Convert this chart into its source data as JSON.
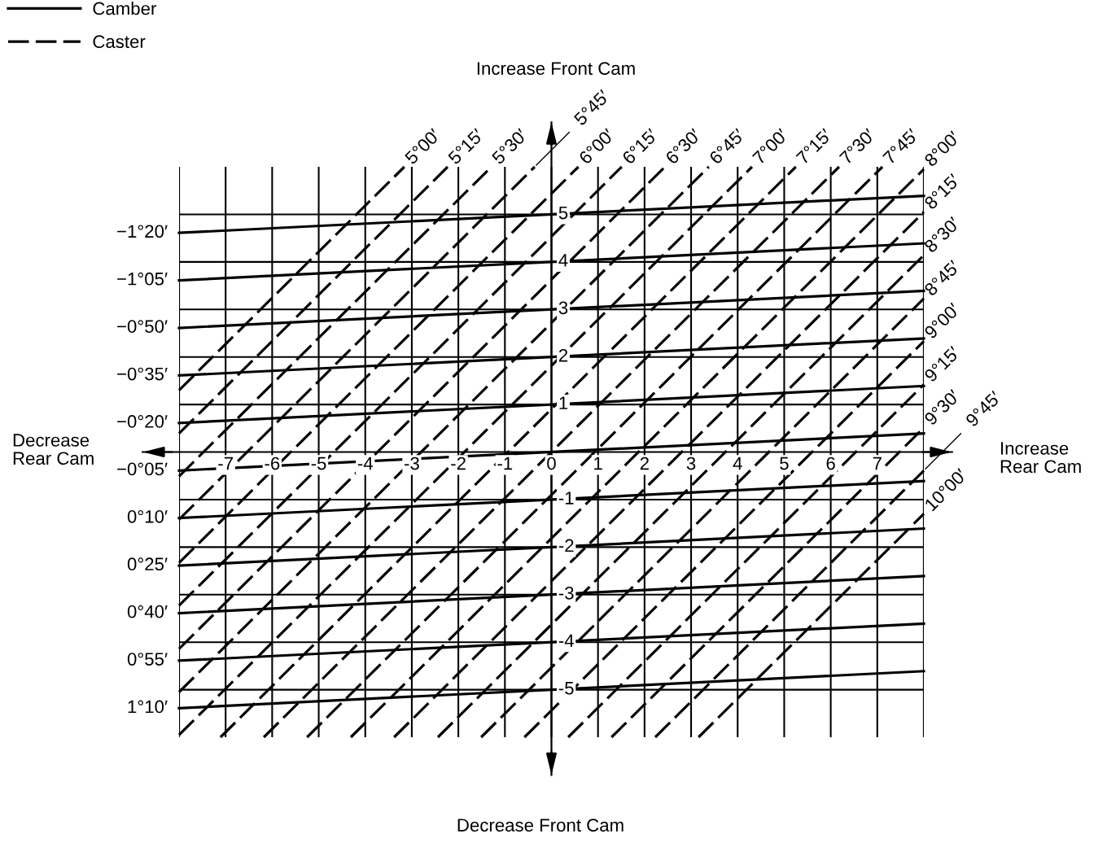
{
  "chart_data": {
    "type": "line",
    "xlim": [
      -8,
      8
    ],
    "ylim": [
      -6,
      6
    ],
    "xticks": [
      -7,
      -6,
      -5,
      -4,
      -3,
      -2,
      -1,
      0,
      1,
      2,
      3,
      4,
      5,
      6,
      7
    ],
    "yticks": [
      -5,
      -4,
      -3,
      -2,
      -1,
      1,
      2,
      3,
      4,
      5
    ],
    "grid": true,
    "legend": "top left",
    "series": [
      {
        "name": "Camber",
        "color": "#000000",
        "line_style": "solid",
        "x": [
          -8,
          8
        ],
        "values": [
          4.61,
          5.39
        ]
      },
      {
        "color": "#000000",
        "line_style": "solid",
        "x": [
          -8,
          8
        ],
        "values": [
          3.61,
          4.39
        ]
      },
      {
        "color": "#000000",
        "line_style": "solid",
        "x": [
          -8,
          8
        ],
        "values": [
          2.61,
          3.39
        ]
      },
      {
        "color": "#000000",
        "line_style": "solid",
        "x": [
          -8,
          8
        ],
        "values": [
          1.61,
          2.39
        ]
      },
      {
        "color": "#000000",
        "line_style": "solid",
        "x": [
          -8,
          8
        ],
        "values": [
          0.61,
          1.39
        ]
      },
      {
        "color": "#000000",
        "line_style": "solid",
        "x": [
          -8,
          8
        ],
        "values": [
          -0.39,
          0.39
        ]
      },
      {
        "color": "#000000",
        "line_style": "solid",
        "x": [
          -8,
          8
        ],
        "values": [
          -1.39,
          -0.61
        ]
      },
      {
        "color": "#000000",
        "line_style": "solid",
        "x": [
          -8,
          8
        ],
        "values": [
          -2.39,
          -1.61
        ]
      },
      {
        "color": "#000000",
        "line_style": "solid",
        "x": [
          -8,
          8
        ],
        "values": [
          -3.39,
          -2.61
        ]
      },
      {
        "color": "#000000",
        "line_style": "solid",
        "x": [
          -8,
          8
        ],
        "values": [
          -4.39,
          -3.61
        ]
      },
      {
        "color": "#000000",
        "line_style": "solid",
        "x": [
          -8,
          8
        ],
        "values": [
          -5.39,
          -4.61
        ]
      },
      {
        "name": "Caster",
        "color": "#000000",
        "line_style": "dashed",
        "x": [
          -8,
          -3.16
        ],
        "values": [
          1.3,
          6
        ]
      },
      {
        "color": "#000000",
        "line_style": "dashed",
        "x": [
          -8,
          -2.23
        ],
        "values": [
          0.39,
          6
        ]
      },
      {
        "color": "#000000",
        "line_style": "dashed",
        "x": [
          -8,
          -1.29
        ],
        "values": [
          -0.51,
          6
        ]
      },
      {
        "color": "#000000",
        "line_style": "dashed",
        "x": [
          -8,
          -0.36
        ],
        "values": [
          -1.42,
          6
        ]
      },
      {
        "color": "#000000",
        "line_style": "dashed",
        "x": [
          -8,
          0.58
        ],
        "values": [
          -2.33,
          6
        ]
      },
      {
        "color": "#000000",
        "line_style": "dashed",
        "x": [
          -8,
          1.51
        ],
        "values": [
          -3.23,
          6
        ]
      },
      {
        "color": "#000000",
        "line_style": "dashed",
        "x": [
          -8,
          2.44
        ],
        "values": [
          -4.14,
          6
        ]
      },
      {
        "color": "#000000",
        "line_style": "dashed",
        "x": [
          -8,
          3.38
        ],
        "values": [
          -5.05,
          6
        ]
      },
      {
        "color": "#000000",
        "line_style": "dashed",
        "x": [
          -8,
          4.31
        ],
        "values": [
          -5.95,
          6
        ]
      },
      {
        "color": "#000000",
        "line_style": "dashed",
        "x": [
          -7.11,
          5.25
        ],
        "values": [
          -6,
          6
        ]
      },
      {
        "color": "#000000",
        "line_style": "dashed",
        "x": [
          -6.18,
          6.18
        ],
        "values": [
          -6,
          6
        ]
      },
      {
        "color": "#000000",
        "line_style": "dashed",
        "x": [
          -5.25,
          7.11
        ],
        "values": [
          -6,
          6
        ]
      },
      {
        "color": "#000000",
        "line_style": "dashed",
        "x": [
          -4.31,
          8
        ],
        "values": [
          -6,
          5.95
        ]
      },
      {
        "color": "#000000",
        "line_style": "dashed",
        "x": [
          -3.38,
          8
        ],
        "values": [
          -6,
          5.05
        ]
      },
      {
        "color": "#000000",
        "line_style": "dashed",
        "x": [
          -2.44,
          8
        ],
        "values": [
          -6,
          4.14
        ]
      },
      {
        "color": "#000000",
        "line_style": "dashed",
        "x": [
          -1.51,
          8
        ],
        "values": [
          -6,
          3.23
        ]
      },
      {
        "color": "#000000",
        "line_style": "dashed",
        "x": [
          -0.58,
          8
        ],
        "values": [
          -6,
          2.33
        ]
      },
      {
        "color": "#000000",
        "line_style": "dashed",
        "x": [
          0.36,
          8
        ],
        "values": [
          -6,
          1.42
        ]
      },
      {
        "color": "#000000",
        "line_style": "dashed",
        "x": [
          1.29,
          8
        ],
        "values": [
          -6,
          0.51
        ]
      },
      {
        "color": "#000000",
        "line_style": "dashed",
        "x": [
          2.23,
          8
        ],
        "values": [
          -6,
          -0.39
        ]
      },
      {
        "color": "#000000",
        "line_style": "dashed",
        "x": [
          3.16,
          8
        ],
        "values": [
          -6,
          -1.3
        ]
      }
    ],
    "annotations": [
      "Increase Front Cam",
      "Decrease\nRear Cam",
      "Increase\nRear Cam",
      "Decrease Front Cam",
      {
        "text": "−1°20′",
        "x": -8,
        "y": 4.61
      },
      {
        "text": "−1°05′",
        "x": -8,
        "y": 3.61
      },
      {
        "text": "−0°50′",
        "x": -8,
        "y": 2.61
      },
      {
        "text": "−0°35′",
        "x": -8,
        "y": 1.61
      },
      {
        "text": "−0°20′",
        "x": -8,
        "y": 0.61
      },
      {
        "text": "−0°05′",
        "x": -8,
        "y": -0.39
      },
      {
        "text": "0°10′",
        "x": -8,
        "y": -1.39
      },
      {
        "text": "0°25′",
        "x": -8,
        "y": -2.39
      },
      {
        "text": "0°40′",
        "x": -8,
        "y": -3.39
      },
      {
        "text": "0°55′",
        "x": -8,
        "y": -4.39
      },
      {
        "text": "1°10′",
        "x": -8,
        "y": -5.39
      },
      {
        "text": "5°00′",
        "x": -3.16,
        "y": 6
      },
      {
        "text": "5°15′",
        "x": -2.23,
        "y": 6
      },
      {
        "text": "5°30′",
        "x": -1.29,
        "y": 6
      },
      {
        "text": "5°45′",
        "x": -0.36,
        "y": 6
      },
      {
        "text": "6°00′",
        "x": 0.58,
        "y": 6
      },
      {
        "text": "6°15′",
        "x": 1.51,
        "y": 6
      },
      {
        "text": "6°30′",
        "x": 2.44,
        "y": 6
      },
      {
        "text": "6°45′",
        "x": 3.38,
        "y": 6
      },
      {
        "text": "7°00′",
        "x": 4.31,
        "y": 6
      },
      {
        "text": "7°15′",
        "x": 5.25,
        "y": 6
      },
      {
        "text": "7°30′",
        "x": 6.18,
        "y": 6
      },
      {
        "text": "7°45′",
        "x": 7.11,
        "y": 6
      },
      {
        "text": "8°00′",
        "x": 8,
        "y": 5.95
      },
      {
        "text": "8°15′",
        "x": 8,
        "y": 5.05
      },
      {
        "text": "8°30′",
        "x": 8,
        "y": 4.14
      },
      {
        "text": "8°45′",
        "x": 8,
        "y": 3.23
      },
      {
        "text": "9°00′",
        "x": 8,
        "y": 2.33
      },
      {
        "text": "9°15′",
        "x": 8,
        "y": 1.42
      },
      {
        "text": "9°30′",
        "x": 8,
        "y": 0.51
      },
      {
        "text": "9°45′",
        "x": 8,
        "y": -0.39
      },
      {
        "text": "10°00′",
        "x": 8,
        "y": -1.3
      }
    ]
  }
}
